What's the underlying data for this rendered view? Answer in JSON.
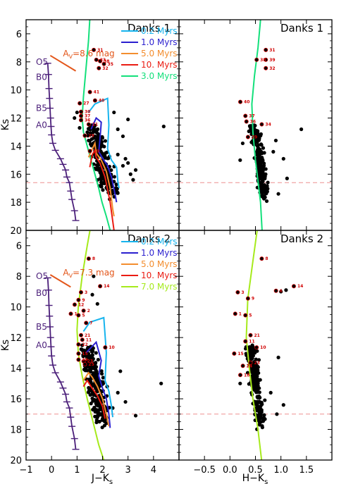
{
  "chart_data": {
    "type": "scatter",
    "colors": {
      "0.2 Myrs": "#17b4ee",
      "1.0 Myrs": "#2a1fcf",
      "5.0 Myrs": "#f38d2e",
      "10. Myrs": "#ea1c12",
      "3.0 Myrs": "#13e07b",
      "7.0 Myrs": "#a6ea1c",
      "main_sequence": "#4b1f7a",
      "reddening": "#e3561a",
      "limit": "#ee8f8f",
      "label": "#d10000"
    },
    "x_axes": {
      "left": {
        "label": "J−K",
        "label_sub": "s",
        "range": [
          -1,
          5
        ],
        "ticks": [
          "−1",
          "0",
          "1",
          "2",
          "3",
          "4"
        ]
      },
      "right": {
        "label": "H−K",
        "label_sub": "s",
        "range": [
          -1,
          2
        ],
        "ticks": [
          "−0.5",
          "0.0",
          "0.5",
          "1.0",
          "1.5"
        ]
      }
    },
    "y_axis": {
      "label": "Ks",
      "range": [
        20,
        5
      ],
      "ticks": [
        "6",
        "8",
        "10",
        "12",
        "14",
        "16",
        "18",
        "20"
      ]
    },
    "spectral_types": [
      "O5",
      "B0",
      "B5",
      "A0"
    ],
    "panels": [
      {
        "id": "danks1-jk",
        "title": "Danks 1",
        "x": "left",
        "reddening_label": "A",
        "reddening_sub": "V",
        "reddening_value": "=8.6 mag",
        "reddening_vector": [
          [
            -0.05,
            7.55
          ],
          [
            0.95,
            8.65
          ]
        ],
        "limit": 16.6,
        "legend": [
          "0.2 Myrs",
          "1.0 Myrs",
          "5.0 Myrs",
          "10. Myrs",
          "3.0 Myrs"
        ],
        "isochrones": [
          {
            "name": "3.0 Myrs",
            "points": [
              [
                1.5,
                5.0
              ],
              [
                1.45,
                6.5
              ],
              [
                1.35,
                8.5
              ],
              [
                1.25,
                10.5
              ],
              [
                1.2,
                12.0
              ],
              [
                1.25,
                13.0
              ],
              [
                1.4,
                14.0
              ],
              [
                1.55,
                15.0
              ],
              [
                1.7,
                16.0
              ],
              [
                1.85,
                17.0
              ],
              [
                1.98,
                18.0
              ],
              [
                2.15,
                19.0
              ],
              [
                2.3,
                20.0
              ]
            ]
          },
          {
            "name": "0.2 Myrs",
            "points": [
              [
                1.45,
                11.6
              ],
              [
                1.7,
                11.0
              ],
              [
                2.2,
                10.6
              ],
              [
                2.25,
                12.5
              ],
              [
                2.2,
                14.2
              ],
              [
                2.35,
                15.0
              ],
              [
                2.55,
                15.5
              ],
              [
                2.6,
                16.5
              ],
              [
                2.65,
                17.0
              ]
            ]
          },
          {
            "name": "1.0 Myrs",
            "points": [
              [
                1.55,
                12.8
              ],
              [
                1.75,
                12.0
              ],
              [
                1.95,
                12.3
              ],
              [
                1.9,
                13.5
              ],
              [
                1.85,
                14.4
              ],
              [
                2.05,
                15.0
              ],
              [
                2.2,
                15.4
              ],
              [
                2.35,
                16.2
              ],
              [
                2.5,
                17.5
              ],
              [
                2.55,
                18.0
              ]
            ]
          },
          {
            "name": "5.0 Myrs",
            "points": [
              [
                1.45,
                14.8
              ],
              [
                1.65,
                14.0
              ],
              [
                1.7,
                13.8
              ],
              [
                1.75,
                14.5
              ],
              [
                1.95,
                15.0
              ],
              [
                2.15,
                15.8
              ],
              [
                2.3,
                17.0
              ],
              [
                2.4,
                18.5
              ],
              [
                2.45,
                19.0
              ]
            ]
          },
          {
            "name": "10. Myrs",
            "points": [
              [
                1.5,
                15.5
              ],
              [
                1.6,
                14.6
              ],
              [
                1.7,
                14.3
              ],
              [
                1.75,
                14.8
              ],
              [
                1.9,
                15.2
              ],
              [
                2.1,
                16.2
              ],
              [
                2.3,
                18.0
              ],
              [
                2.45,
                20.0
              ]
            ]
          }
        ],
        "labels": [
          {
            "t": "31",
            "x": 1.85,
            "y": 7.1
          },
          {
            "t": "33",
            "x": 1.95,
            "y": 7.8
          },
          {
            "t": "38",
            "x": 2.1,
            "y": 7.9
          },
          {
            "t": "35",
            "x": 2.25,
            "y": 8.1
          },
          {
            "t": "32",
            "x": 2.05,
            "y": 8.4
          },
          {
            "t": "41",
            "x": 1.7,
            "y": 10.1
          },
          {
            "t": "40",
            "x": 1.9,
            "y": 10.7
          },
          {
            "t": "27",
            "x": 1.3,
            "y": 10.9
          },
          {
            "t": "30",
            "x": 1.35,
            "y": 11.5
          },
          {
            "t": "37",
            "x": 1.35,
            "y": 11.8
          },
          {
            "t": "36",
            "x": 1.35,
            "y": 12.1
          },
          {
            "t": "21",
            "x": 1.65,
            "y": 12.4
          },
          {
            "t": "29",
            "x": 1.5,
            "y": 13.2
          },
          {
            "t": "19",
            "x": 1.7,
            "y": 14.3
          }
        ]
      },
      {
        "id": "danks1-hk",
        "title": "Danks 1",
        "x": "right",
        "limit": 16.6,
        "isochrones": [
          {
            "name": "3.0 Myrs",
            "points": [
              [
                0.6,
                5.0
              ],
              [
                0.55,
                7.0
              ],
              [
                0.48,
                9.0
              ],
              [
                0.43,
                11.0
              ],
              [
                0.45,
                13.0
              ],
              [
                0.5,
                15.0
              ],
              [
                0.55,
                16.5
              ],
              [
                0.6,
                18.0
              ],
              [
                0.63,
                20.0
              ]
            ]
          }
        ],
        "labels": [
          {
            "t": "31",
            "x": 0.8,
            "y": 7.1
          },
          {
            "t": "38",
            "x": 0.62,
            "y": 7.8
          },
          {
            "t": "39",
            "x": 0.8,
            "y": 7.8
          },
          {
            "t": "32",
            "x": 0.8,
            "y": 8.4
          },
          {
            "t": "40",
            "x": 0.3,
            "y": 10.8
          },
          {
            "t": "37",
            "x": 0.4,
            "y": 11.8
          },
          {
            "t": "36",
            "x": 0.42,
            "y": 12.2
          },
          {
            "t": "34",
            "x": 0.72,
            "y": 12.4
          },
          {
            "t": "29",
            "x": 0.45,
            "y": 13.3
          }
        ]
      },
      {
        "id": "danks2-jk",
        "title": "Danks 2",
        "x": "left",
        "reddening_label": "A",
        "reddening_sub": "V",
        "reddening_value": "=7.3 mag",
        "reddening_vector": [
          [
            -0.05,
            7.9
          ],
          [
            0.75,
            8.7
          ]
        ],
        "limit": 17.0,
        "legend": [
          "0.2 Myrs",
          "1.0 Myrs",
          "5.0 Myrs",
          "10. Myrs",
          "7.0 Myrs"
        ],
        "isochrones": [
          {
            "name": "7.0 Myrs",
            "points": [
              [
                1.55,
                4.6
              ],
              [
                1.4,
                6.0
              ],
              [
                1.2,
                8.0
              ],
              [
                1.05,
                10.0
              ],
              [
                1.0,
                11.5
              ],
              [
                1.05,
                13.0
              ],
              [
                1.2,
                14.5
              ],
              [
                1.4,
                16.0
              ],
              [
                1.55,
                17.0
              ],
              [
                1.7,
                18.0
              ],
              [
                1.85,
                19.0
              ],
              [
                2.05,
                20.0
              ]
            ]
          },
          {
            "name": "0.2 Myrs",
            "points": [
              [
                1.25,
                11.6
              ],
              [
                1.5,
                11.0
              ],
              [
                2.05,
                10.7
              ],
              [
                2.15,
                13.0
              ],
              [
                2.1,
                14.8
              ],
              [
                2.25,
                15.5
              ],
              [
                2.35,
                16.5
              ],
              [
                2.4,
                17.2
              ]
            ]
          },
          {
            "name": "1.0 Myrs",
            "points": [
              [
                1.35,
                13.0
              ],
              [
                1.75,
                12.3
              ],
              [
                1.95,
                13.5
              ],
              [
                1.85,
                14.5
              ],
              [
                2.0,
                15.3
              ],
              [
                2.15,
                16.0
              ],
              [
                2.25,
                17.0
              ],
              [
                2.3,
                17.9
              ]
            ]
          },
          {
            "name": "5.0 Myrs",
            "points": [
              [
                1.25,
                14.8
              ],
              [
                1.45,
                14.3
              ],
              [
                1.6,
                14.6
              ],
              [
                1.8,
                15.2
              ],
              [
                2.0,
                16.0
              ],
              [
                2.15,
                17.0
              ],
              [
                2.25,
                17.8
              ]
            ]
          },
          {
            "name": "10. Myrs",
            "points": [
              [
                1.25,
                15.2
              ],
              [
                1.4,
                14.8
              ],
              [
                1.55,
                15.2
              ],
              [
                1.8,
                15.8
              ],
              [
                2.0,
                16.5
              ],
              [
                2.1,
                17.3
              ]
            ]
          }
        ],
        "labels": [
          {
            "t": "8",
            "x": 1.65,
            "y": 6.8
          },
          {
            "t": "14",
            "x": 2.1,
            "y": 8.6
          },
          {
            "t": "3",
            "x": 1.35,
            "y": 9.0
          },
          {
            "t": "9",
            "x": 1.25,
            "y": 9.5
          },
          {
            "t": "1",
            "x": 0.95,
            "y": 10.4
          },
          {
            "t": "12",
            "x": 1.1,
            "y": 9.8
          },
          {
            "t": "5",
            "x": 1.25,
            "y": 10.5
          },
          {
            "t": "2",
            "x": 1.45,
            "y": 10.2
          },
          {
            "t": "7",
            "x": 1.55,
            "y": 11.0
          },
          {
            "t": "21",
            "x": 1.35,
            "y": 11.8
          },
          {
            "t": "11",
            "x": 1.4,
            "y": 12.1
          },
          {
            "t": "22",
            "x": 1.25,
            "y": 12.4
          },
          {
            "t": "10",
            "x": 2.3,
            "y": 12.6
          },
          {
            "t": "15",
            "x": 1.25,
            "y": 13.0
          },
          {
            "t": "24",
            "x": 1.25,
            "y": 13.4
          },
          {
            "t": "23",
            "x": 1.45,
            "y": 13.5
          },
          {
            "t": "25",
            "x": 1.5,
            "y": 13.7
          }
        ]
      },
      {
        "id": "danks2-hk",
        "title": "Danks 2",
        "x": "right",
        "limit": 17.0,
        "isochrones": [
          {
            "name": "7.0 Myrs",
            "points": [
              [
                0.55,
                4.6
              ],
              [
                0.45,
                7.0
              ],
              [
                0.35,
                9.5
              ],
              [
                0.32,
                12.0
              ],
              [
                0.38,
                14.0
              ],
              [
                0.45,
                16.0
              ],
              [
                0.55,
                18.0
              ],
              [
                0.62,
                20.0
              ]
            ]
          }
        ],
        "labels": [
          {
            "t": "8",
            "x": 0.72,
            "y": 6.8
          },
          {
            "t": "14",
            "x": 1.35,
            "y": 8.6
          },
          {
            "t": "6",
            "x": 1.0,
            "y": 8.9
          },
          {
            "t": "3",
            "x": 0.25,
            "y": 9.0
          },
          {
            "t": "9",
            "x": 0.45,
            "y": 9.4
          },
          {
            "t": "1",
            "x": 0.2,
            "y": 10.4
          },
          {
            "t": "5",
            "x": 0.4,
            "y": 10.5
          },
          {
            "t": "21",
            "x": 0.5,
            "y": 11.8
          },
          {
            "t": "11",
            "x": 0.4,
            "y": 12.2
          },
          {
            "t": "10",
            "x": 0.62,
            "y": 12.6
          },
          {
            "t": "15",
            "x": 0.18,
            "y": 13.0
          },
          {
            "t": "23",
            "x": 0.5,
            "y": 13.6
          },
          {
            "t": "24",
            "x": 0.35,
            "y": 13.8
          },
          {
            "t": "18",
            "x": 0.3,
            "y": 14.4
          }
        ]
      }
    ]
  }
}
